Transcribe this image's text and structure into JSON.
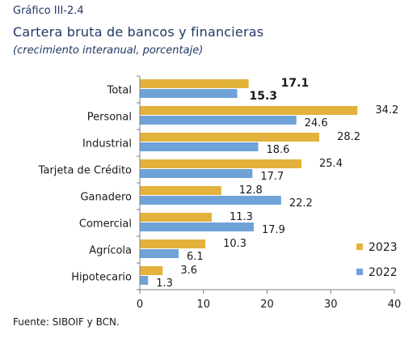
{
  "header": {
    "label": "Gráfico III-2.4",
    "title": "Cartera bruta de bancos y financieras",
    "subtitle": "(crecimiento interanual, porcentaje)"
  },
  "source": "Fuente: SIBOIF y BCN.",
  "chart_data": {
    "type": "bar",
    "orientation": "horizontal",
    "categories": [
      "Total",
      "Personal",
      "Industrial",
      "Tarjeta de Crédito",
      "Ganadero",
      "Comercial",
      "Agrícola",
      "Hipotecario"
    ],
    "series": [
      {
        "name": "2023",
        "color": "#E3B23C",
        "values": [
          17.1,
          34.2,
          28.2,
          25.4,
          12.8,
          11.3,
          10.3,
          3.6
        ],
        "labels": [
          "17.1",
          "34.2",
          "28.2",
          "25.4",
          "12.8",
          "11.3",
          "10.3",
          "3.6"
        ]
      },
      {
        "name": "2022",
        "color": "#6FA3D8",
        "values": [
          15.3,
          24.6,
          18.6,
          17.7,
          22.2,
          17.9,
          6.1,
          1.3
        ],
        "labels": [
          "15.3",
          "24.6",
          "18.6",
          "17.7",
          "22.2",
          "17.9",
          "6.1",
          "1.3"
        ]
      }
    ],
    "xlim": [
      0,
      40
    ],
    "xticks": [
      "0",
      "10",
      "20",
      "30",
      "40"
    ],
    "title": "",
    "xlabel": "",
    "ylabel": "",
    "grid": false,
    "legend_position": "bottom-right"
  }
}
